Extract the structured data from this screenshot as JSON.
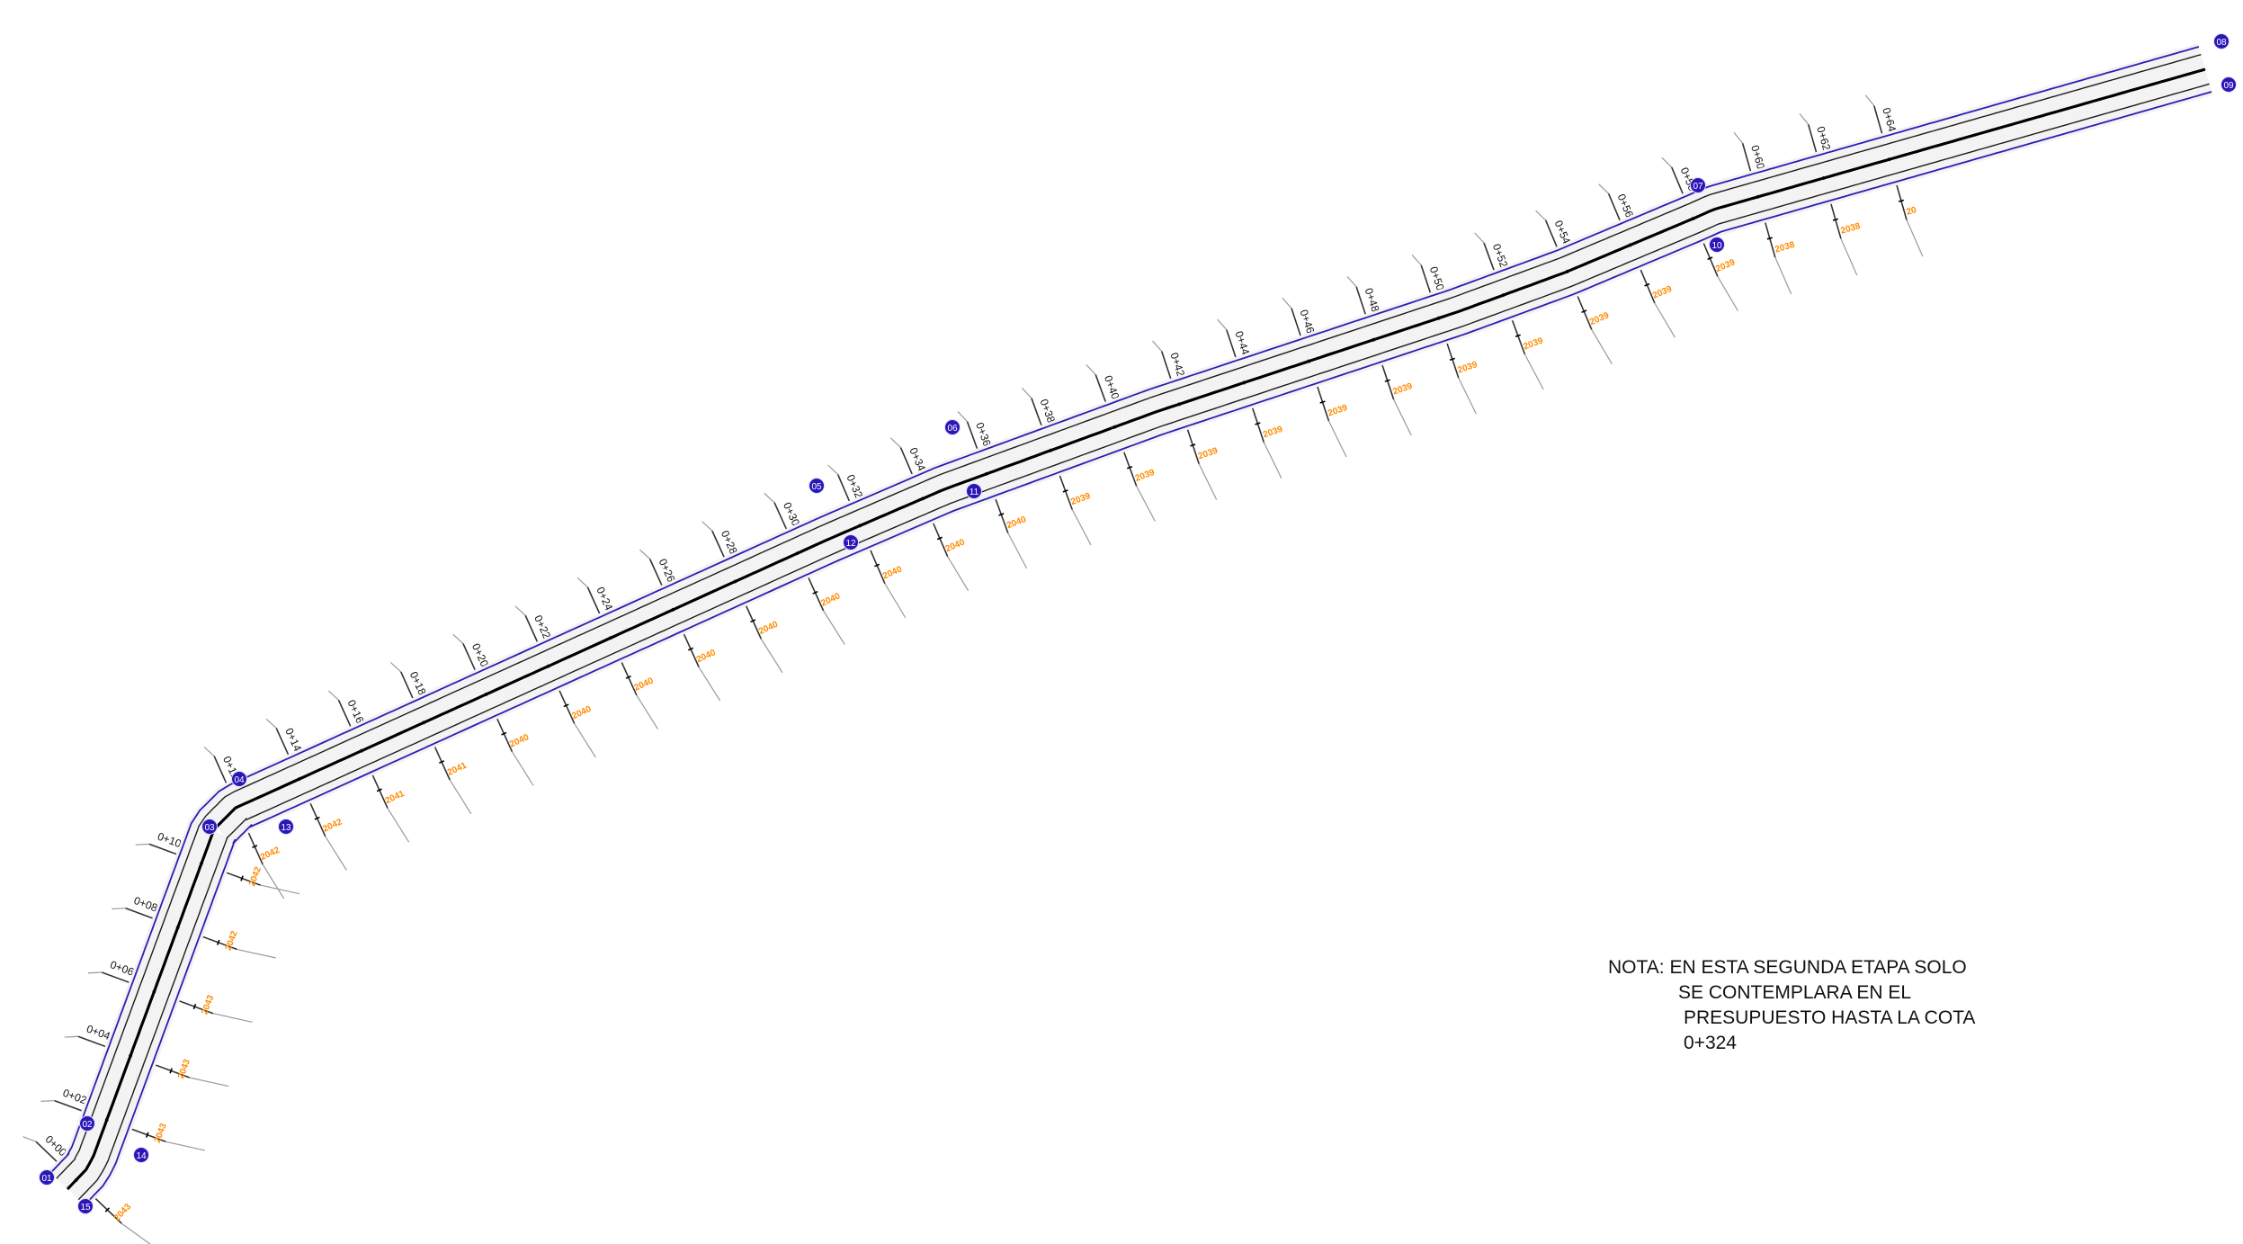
{
  "drawing": {
    "colors": {
      "centerline": "#000000",
      "road_edge": "#1c1c1c",
      "property_line": "#2a1fb5",
      "section": "#333333",
      "section_tail": "#9a9a9a",
      "elevation": "#ff8a00",
      "point_fill": "#2b16b8",
      "point_text": "#ffffff",
      "station_text": "#111111"
    },
    "stations": [
      "0+000",
      "0+020",
      "0+040",
      "0+060",
      "0+080",
      "0+100",
      "0+120",
      "0+140",
      "0+160",
      "0+180",
      "0+200",
      "0+220",
      "0+240",
      "0+260",
      "0+280",
      "0+300",
      "0+320",
      "0+340",
      "0+360",
      "0+380",
      "0+400",
      "0+420",
      "0+440",
      "0+460",
      "0+480",
      "0+500",
      "0+520",
      "0+540",
      "0+560",
      "0+580",
      "0+600",
      "0+620",
      "0+640"
    ],
    "elevations": [
      "2043",
      "2043",
      "2043",
      "2043",
      "2042",
      "2042",
      "2042",
      "2042",
      "2041",
      "2041",
      "2040",
      "2040",
      "2040",
      "2040",
      "2040",
      "2040",
      "2040",
      "2040",
      "2040",
      "2039",
      "2039",
      "2039",
      "2039",
      "2039",
      "2039",
      "2039",
      "2039",
      "2039",
      "2039",
      "2039",
      "2038",
      "2038",
      "20"
    ],
    "points": [
      "01",
      "02",
      "03",
      "04",
      "05",
      "06",
      "07",
      "08",
      "09",
      "10",
      "11",
      "12",
      "13",
      "14",
      "15"
    ]
  },
  "note": {
    "line1": "NOTA: EN ESTA SEGUNDA ETAPA SOLO",
    "line2": "SE CONTEMPLARA EN EL",
    "line3": "PRESUPUESTO HASTA LA COTA",
    "line4": "0+324"
  }
}
